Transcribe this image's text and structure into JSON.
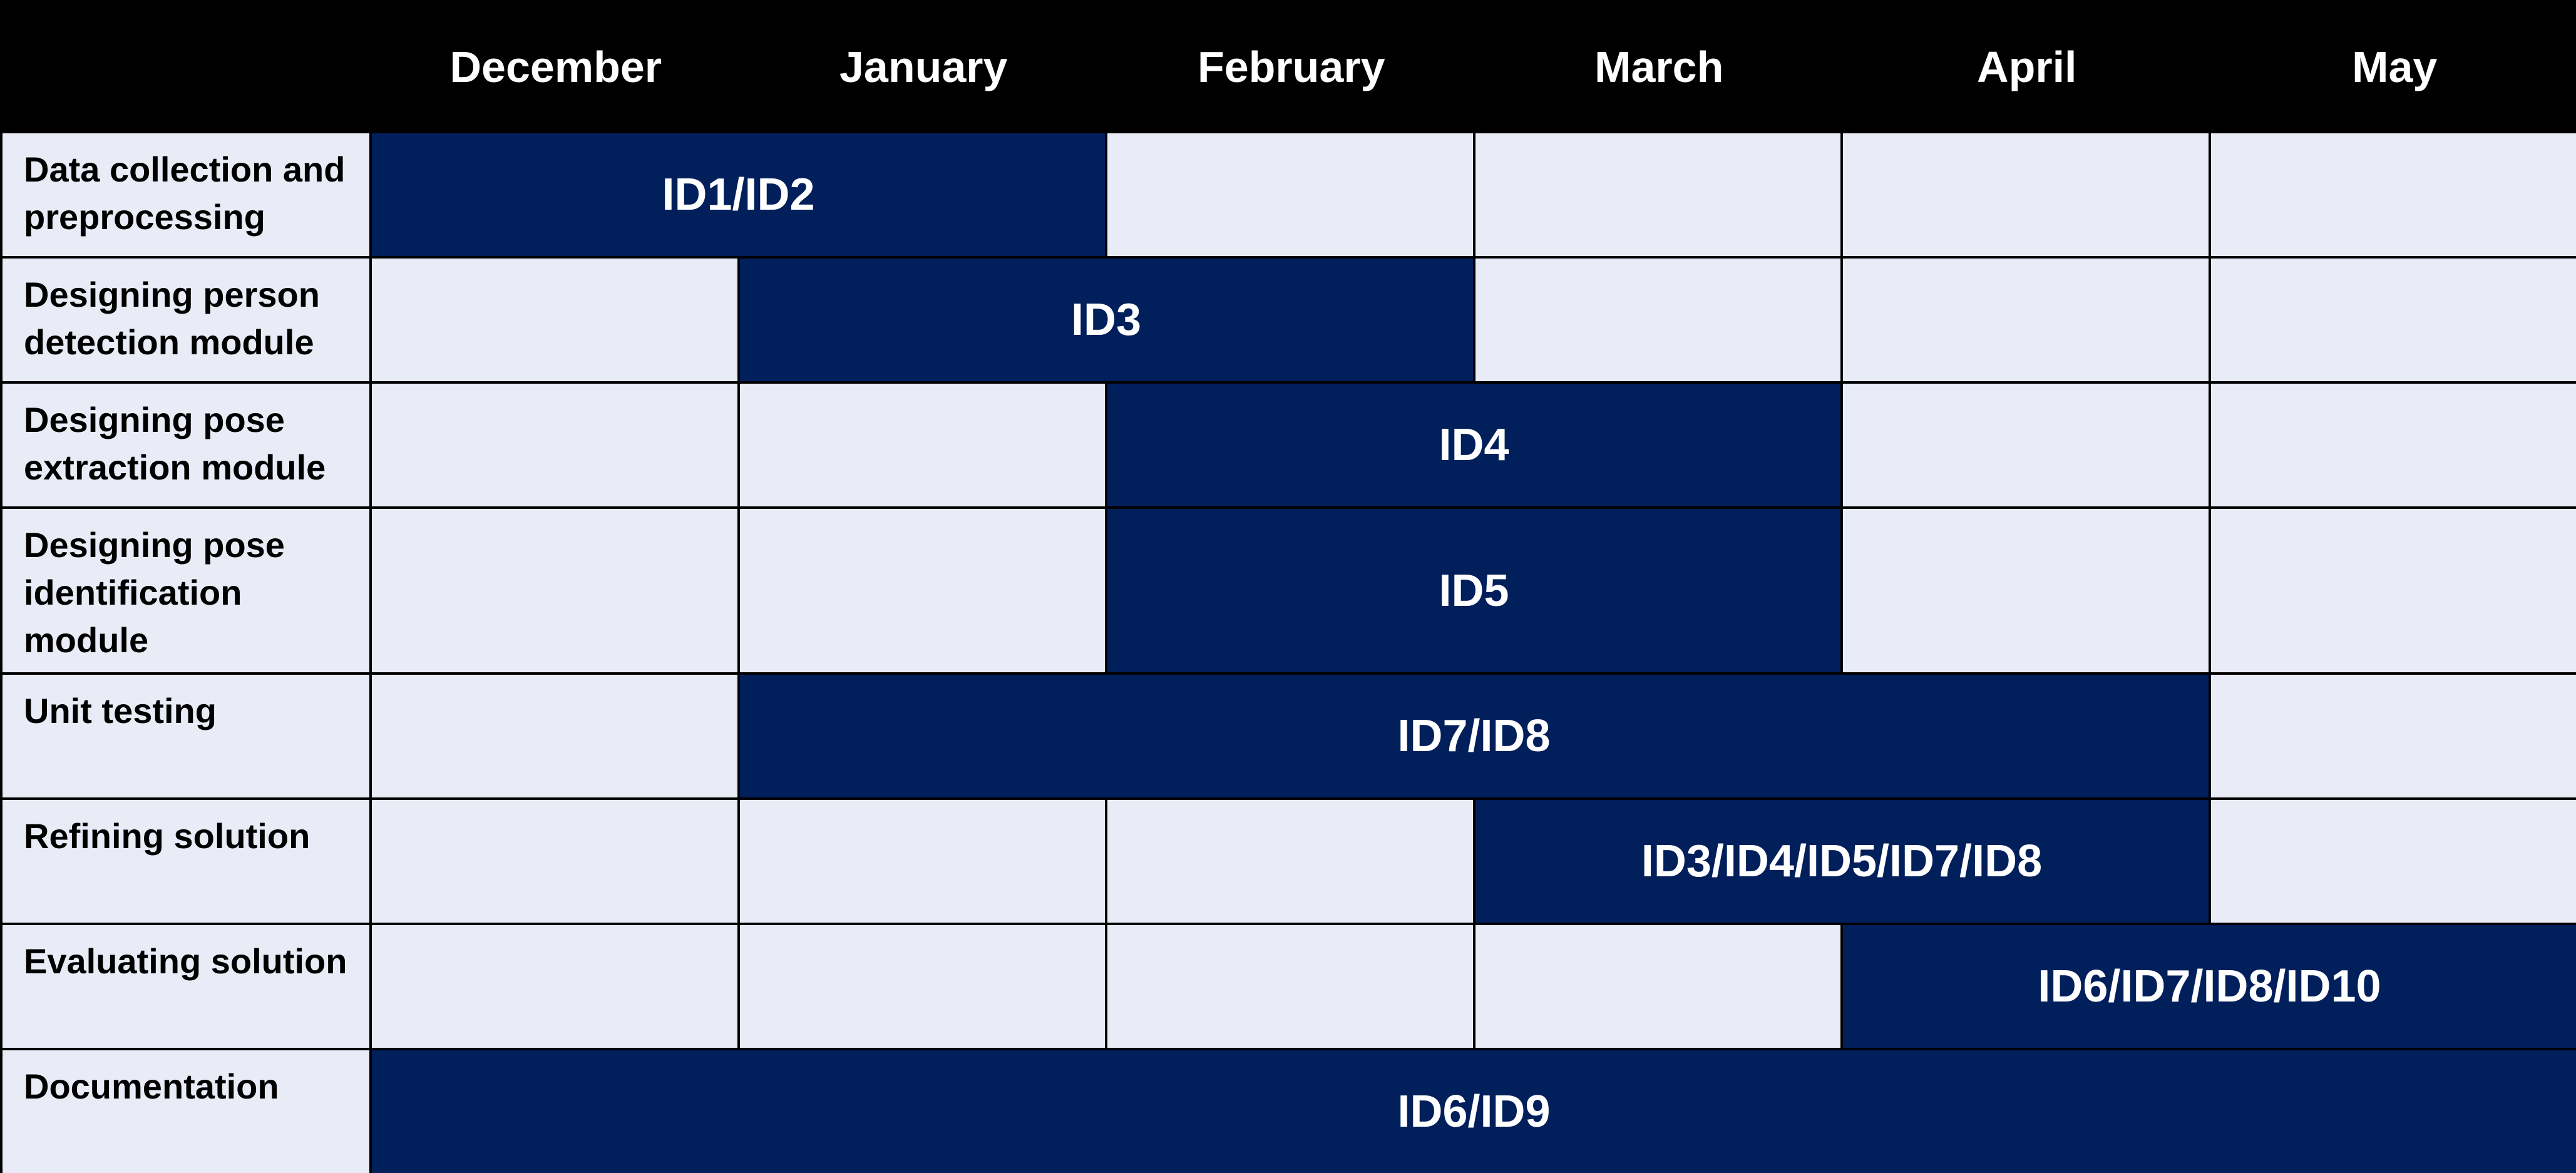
{
  "months": [
    "December",
    "January",
    "February",
    "March",
    "April",
    "May"
  ],
  "tasks": [
    {
      "name": "Data collection and preprocessing",
      "start": 0,
      "end": 1,
      "label": "ID1/ID2"
    },
    {
      "name": "Designing person detection module",
      "start": 1,
      "end": 2,
      "label": "ID3"
    },
    {
      "name": "Designing pose extraction module",
      "start": 2,
      "end": 3,
      "label": "ID4"
    },
    {
      "name": "Designing pose identification module",
      "start": 2,
      "end": 3,
      "label": "ID5"
    },
    {
      "name": "Unit testing",
      "start": 1,
      "end": 4,
      "label": "ID7/ID8"
    },
    {
      "name": "Refining solution",
      "start": 3,
      "end": 4,
      "label": "ID3/ID4/ID5/ID7/ID8"
    },
    {
      "name": "Evaluating solution",
      "start": 4,
      "end": 5,
      "label": "ID6/ID7/ID8/ID10"
    },
    {
      "name": "Documentation",
      "start": 0,
      "end": 5,
      "label": "ID6/ID9"
    }
  ],
  "colors": {
    "header_bg": "#000000",
    "bar": "#001f5b",
    "empty_cell": "#e9ecf6",
    "grid_line": "#000000"
  }
}
